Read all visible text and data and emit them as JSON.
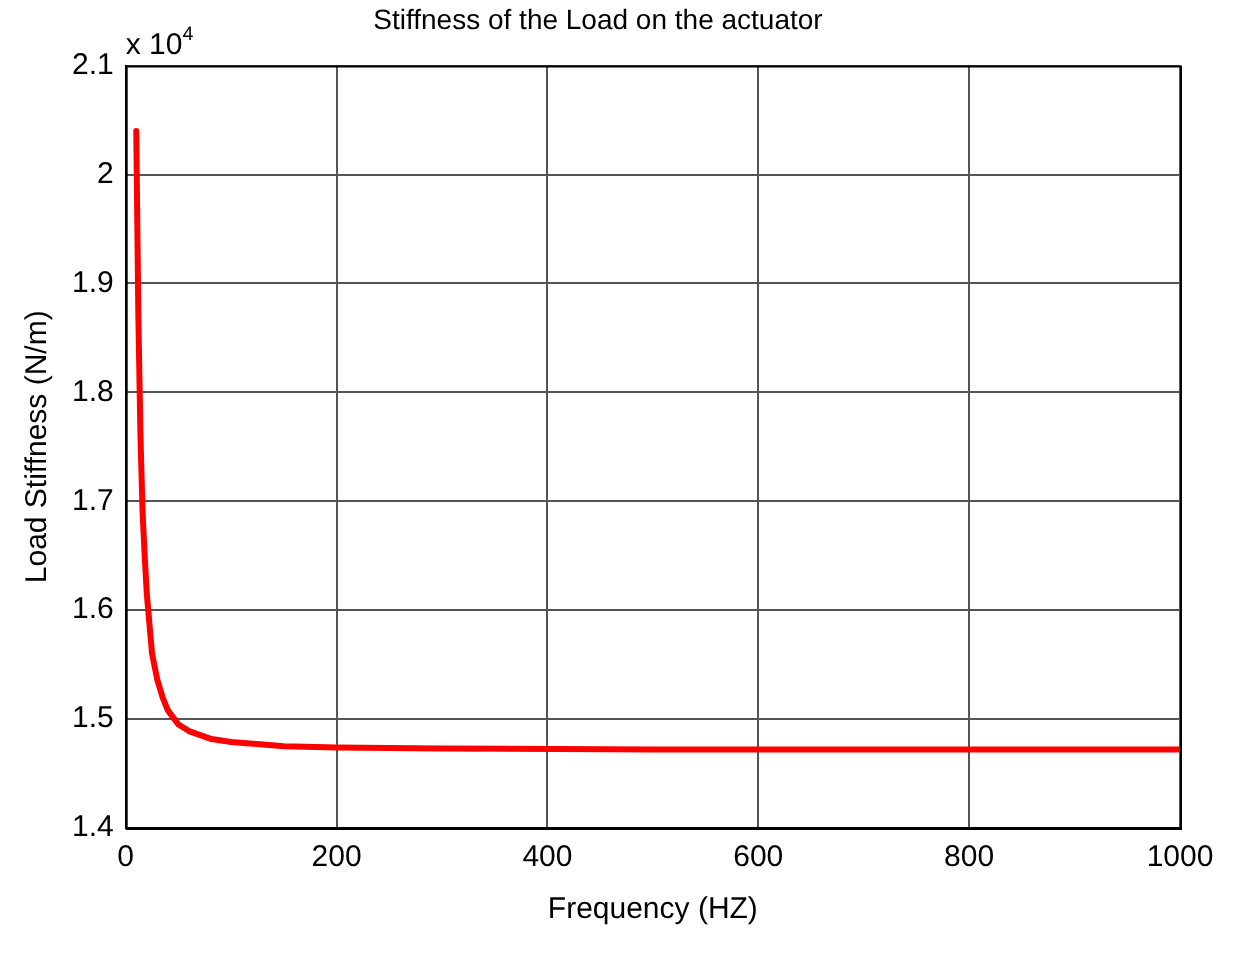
{
  "chart_data": {
    "type": "line",
    "title": "Stiffness of the Load on the actuator",
    "xlabel": "Frequency (HZ)",
    "ylabel": "Load Stiffness (N/m)",
    "annotations": [
      "x 10$^{4}$"
    ],
    "x": [
      10,
      12,
      14,
      16,
      18,
      20,
      25,
      30,
      35,
      40,
      50,
      60,
      80,
      100,
      150,
      200,
      300,
      500,
      700,
      1000
    ],
    "series": [
      {
        "color": "#ff0000",
        "values": [
          2.04,
          1.87,
          1.76,
          1.69,
          1.65,
          1.615,
          1.56,
          1.536,
          1.52,
          1.508,
          1.495,
          1.489,
          1.482,
          1.479,
          1.475,
          1.474,
          1.473,
          1.472,
          1.472,
          1.472
        ]
      }
    ],
    "xlim": [
      0,
      1000
    ],
    "xticks": [
      0,
      200,
      400,
      600,
      800,
      1000
    ],
    "ylim": [
      1.4,
      2.1
    ],
    "yticks": [
      1.4,
      1.5,
      1.6,
      1.7,
      1.8,
      1.9,
      2,
      2.1
    ],
    "grid": true,
    "legend": false,
    "marker": "none",
    "line_style": "solid"
  }
}
